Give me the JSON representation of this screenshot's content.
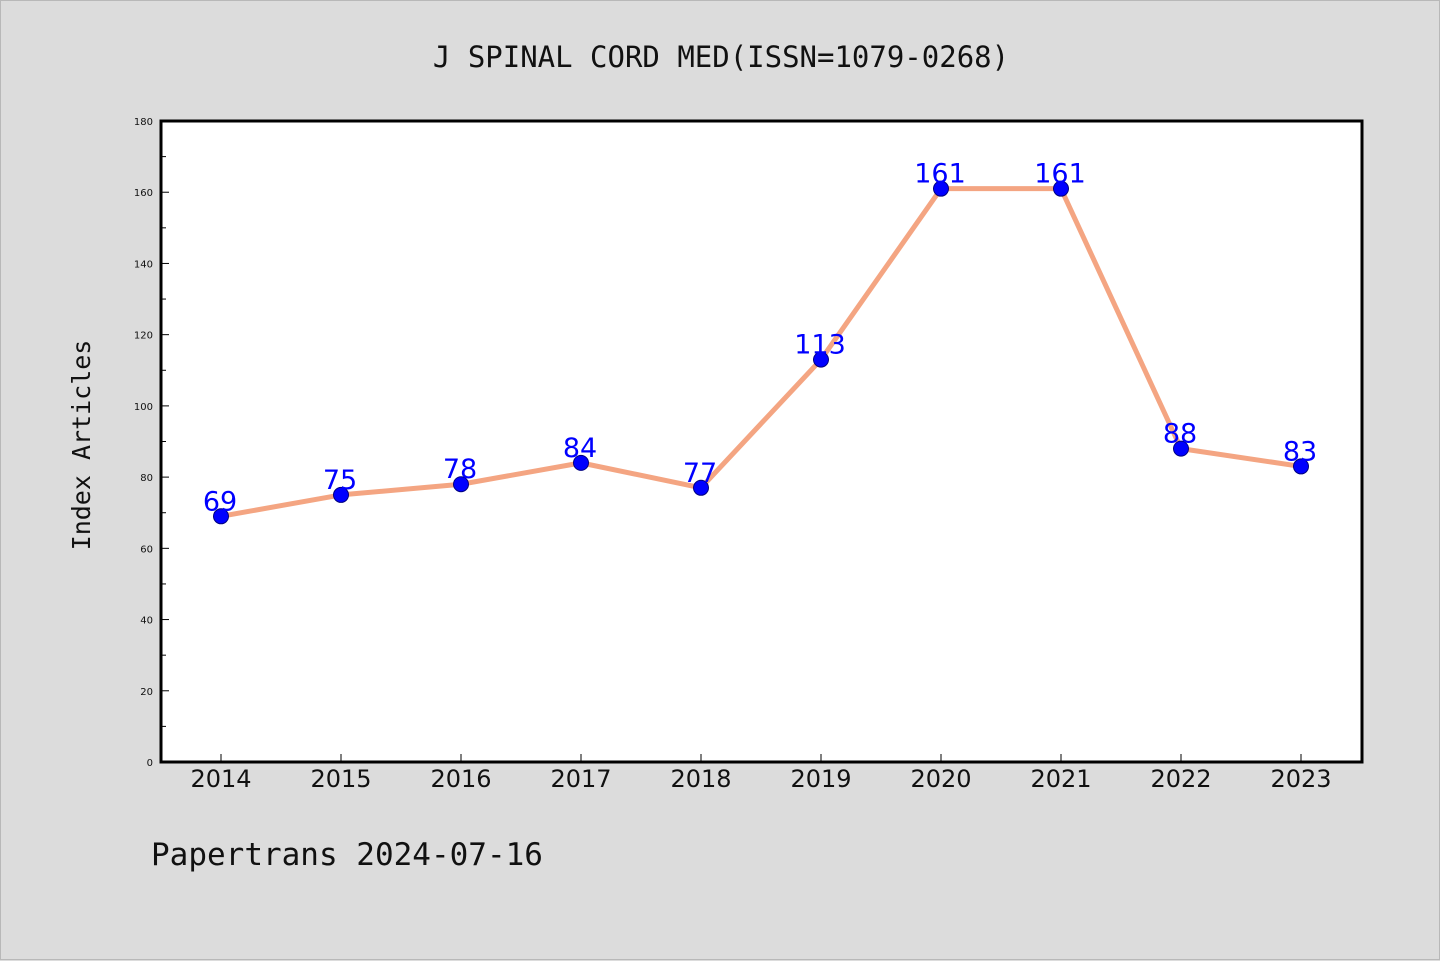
{
  "chart_data": {
    "type": "line",
    "title": "J SPINAL CORD MED(ISSN=1079-0268)",
    "xlabel": "",
    "ylabel": "Index Articles",
    "categories": [
      "2014",
      "2015",
      "2016",
      "2017",
      "2018",
      "2019",
      "2020",
      "2021",
      "2022",
      "2023"
    ],
    "series": [
      {
        "values": [
          69,
          75,
          78,
          84,
          77,
          113,
          161,
          161,
          88,
          83
        ]
      }
    ],
    "ylim": [
      0,
      180
    ],
    "yticks": [
      0,
      20,
      40,
      60,
      80,
      100,
      120,
      140,
      160,
      180
    ],
    "data_labels": true,
    "grid": false,
    "legend": "none",
    "colors": {
      "line": "#f4a582",
      "marker": "#0000ff",
      "marker_edge": "#000080",
      "data_label": "#0000ff",
      "plot_bg": "#ffffff",
      "figure_bg": "#dcdcdc"
    }
  },
  "footer": {
    "text": "Papertrans 2024-07-16"
  }
}
